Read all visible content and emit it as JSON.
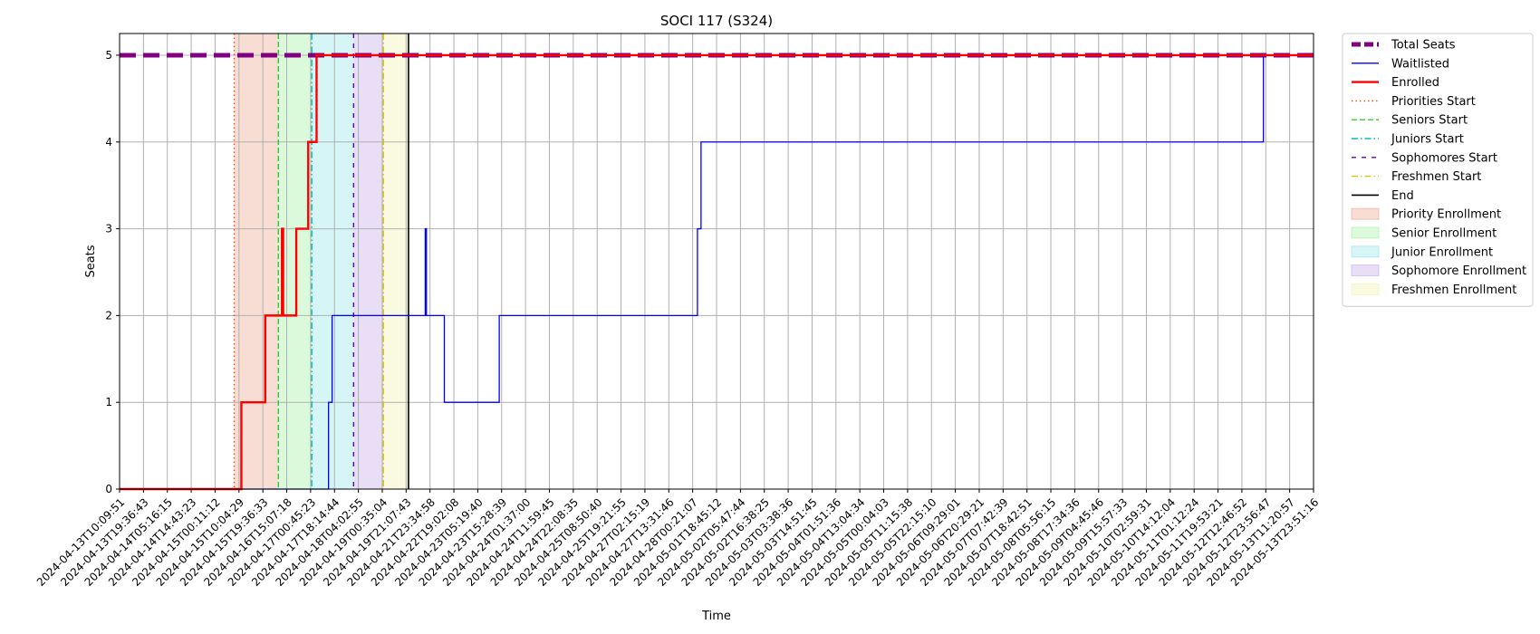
{
  "chart_data": {
    "type": "line",
    "title": "SOCI 117 (S324)",
    "xlabel": "Time",
    "ylabel": "Seats",
    "ylim": [
      0,
      5.25
    ],
    "y_ticks": [
      0,
      1,
      2,
      3,
      4,
      5
    ],
    "grid": true,
    "legend_position": "outside-right",
    "x_ticks": [
      "2024-04-13T10:09:51",
      "2024-04-13T19:36:43",
      "2024-04-14T05:16:15",
      "2024-04-14T14:43:23",
      "2024-04-15T00:11:12",
      "2024-04-15T10:04:29",
      "2024-04-15T19:36:33",
      "2024-04-16T15:07:18",
      "2024-04-17T00:45:23",
      "2024-04-17T18:14:44",
      "2024-04-18T04:02:55",
      "2024-04-19T00:35:04",
      "2024-04-19T21:07:43",
      "2024-04-21T23:34:58",
      "2024-04-22T19:02:08",
      "2024-04-23T05:19:40",
      "2024-04-23T15:28:39",
      "2024-04-24T01:37:00",
      "2024-04-24T11:59:45",
      "2024-04-24T22:08:35",
      "2024-04-25T08:50:40",
      "2024-04-25T19:21:55",
      "2024-04-27T02:15:19",
      "2024-04-27T13:31:46",
      "2024-04-28T00:21:07",
      "2024-05-01T18:45:12",
      "2024-05-02T05:47:44",
      "2024-05-02T16:38:25",
      "2024-05-03T03:38:36",
      "2024-05-03T14:51:45",
      "2024-05-04T01:51:36",
      "2024-05-04T13:04:34",
      "2024-05-05T00:04:03",
      "2024-05-05T11:15:38",
      "2024-05-05T22:15:10",
      "2024-05-06T09:29:01",
      "2024-05-06T20:29:21",
      "2024-05-07T07:42:39",
      "2024-05-07T18:42:51",
      "2024-05-08T05:56:15",
      "2024-05-08T17:34:36",
      "2024-05-09T04:45:46",
      "2024-05-09T15:57:33",
      "2024-05-10T02:59:31",
      "2024-05-10T14:12:04",
      "2024-05-11T01:12:24",
      "2024-05-11T19:53:21",
      "2024-05-12T12:46:52",
      "2024-05-12T23:56:47",
      "2024-05-13T11:20:57",
      "2024-05-13T23:51:16"
    ],
    "series": [
      {
        "name": "Total Seats",
        "style": "dashed-thick",
        "color": "#800080",
        "points": [
          [
            0,
            5
          ],
          [
            50,
            5
          ]
        ]
      },
      {
        "name": "Waitlisted",
        "style": "step",
        "color": "#0000ff",
        "points": [
          [
            0,
            0
          ],
          [
            8.75,
            0
          ],
          [
            8.75,
            1
          ],
          [
            8.9,
            1
          ],
          [
            8.9,
            2
          ],
          [
            12.8,
            2
          ],
          [
            12.8,
            3
          ],
          [
            12.85,
            3
          ],
          [
            12.85,
            2
          ],
          [
            13.6,
            2
          ],
          [
            13.6,
            1
          ],
          [
            15.9,
            1
          ],
          [
            15.9,
            2
          ],
          [
            24.2,
            2
          ],
          [
            24.2,
            3
          ],
          [
            24.35,
            3
          ],
          [
            24.35,
            4
          ],
          [
            47.9,
            4
          ],
          [
            47.9,
            5
          ],
          [
            50,
            5
          ]
        ]
      },
      {
        "name": "Enrolled",
        "style": "step-thick",
        "color": "#ff0000",
        "points": [
          [
            0,
            0
          ],
          [
            5.1,
            0
          ],
          [
            5.1,
            1
          ],
          [
            6.1,
            1
          ],
          [
            6.1,
            2
          ],
          [
            6.8,
            2
          ],
          [
            6.8,
            3
          ],
          [
            6.85,
            3
          ],
          [
            6.85,
            2
          ],
          [
            7.4,
            2
          ],
          [
            7.4,
            3
          ],
          [
            7.9,
            3
          ],
          [
            7.9,
            4
          ],
          [
            8.25,
            4
          ],
          [
            8.25,
            5
          ],
          [
            50,
            5
          ]
        ]
      }
    ],
    "vertical_lines": [
      {
        "name": "Priorities Start",
        "x": 4.8,
        "color": "#ff4500",
        "style": "dotted"
      },
      {
        "name": "Seniors Start",
        "x": 6.65,
        "color": "#32cd32",
        "style": "dashed"
      },
      {
        "name": "Juniors Start",
        "x": 8.05,
        "color": "#00bfbf",
        "style": "dashdot"
      },
      {
        "name": "Sophomores Start",
        "x": 9.8,
        "color": "#5b00d6",
        "style": "loosedash"
      },
      {
        "name": "Freshmen Start",
        "x": 11.05,
        "color": "#d6c800",
        "style": "dashdot"
      },
      {
        "name": "End",
        "x": 12.1,
        "color": "#000000",
        "style": "solid"
      }
    ],
    "spans": [
      {
        "name": "Priority Enrollment",
        "x0": 4.8,
        "x1": 6.65,
        "color": "#e8967a"
      },
      {
        "name": "Senior Enrollment",
        "x0": 6.65,
        "x1": 8.05,
        "color": "#90ee90"
      },
      {
        "name": "Junior Enrollment",
        "x0": 8.05,
        "x1": 9.8,
        "color": "#7fe0e6"
      },
      {
        "name": "Sophomore Enrollment",
        "x0": 9.8,
        "x1": 11.05,
        "color": "#b99be6"
      },
      {
        "name": "Freshmen Enrollment",
        "x0": 11.05,
        "x1": 12.1,
        "color": "#f0f0a0"
      }
    ]
  }
}
